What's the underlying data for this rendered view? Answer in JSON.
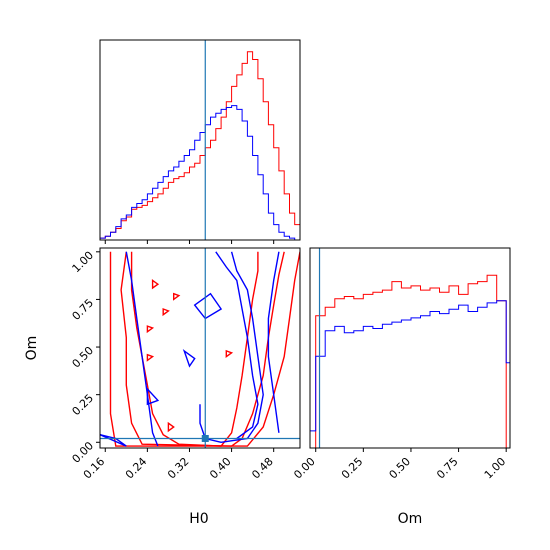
{
  "chart_data": {
    "type": "corner",
    "parameters": [
      "H0",
      "Om"
    ],
    "colors": {
      "series_a": "#ff0000",
      "series_b": "#0000ff",
      "truth": "#1f77b4"
    },
    "truth": {
      "H0": 0.35,
      "Om": 0.02
    },
    "axes": {
      "H0": {
        "range": [
          0.15,
          0.53
        ],
        "ticks": [
          0.16,
          0.24,
          0.32,
          0.4,
          0.48
        ],
        "tick_labels": [
          "0.16",
          "0.24",
          "0.32",
          "0.40",
          "0.48"
        ],
        "label": "H0"
      },
      "Om": {
        "range": [
          -0.03,
          1.02
        ],
        "ticks": [
          0.0,
          0.25,
          0.5,
          0.75,
          1.0
        ],
        "tick_labels": [
          "0.00",
          "0.25",
          "0.50",
          "0.75",
          "1.00"
        ],
        "label": "Om"
      }
    },
    "hist_H0": {
      "bin_edges": [
        0.15,
        0.16,
        0.17,
        0.18,
        0.19,
        0.2,
        0.21,
        0.22,
        0.23,
        0.24,
        0.25,
        0.26,
        0.27,
        0.28,
        0.29,
        0.3,
        0.31,
        0.32,
        0.33,
        0.34,
        0.35,
        0.36,
        0.37,
        0.38,
        0.39,
        0.4,
        0.41,
        0.42,
        0.43,
        0.44,
        0.45,
        0.46,
        0.47,
        0.48,
        0.49,
        0.5,
        0.51,
        0.52,
        0.53
      ],
      "series": [
        {
          "color": "red",
          "counts": [
            1,
            2,
            4,
            6,
            10,
            12,
            16,
            17,
            18,
            20,
            22,
            24,
            27,
            30,
            32,
            33,
            35,
            38,
            40,
            44,
            48,
            52,
            58,
            64,
            72,
            80,
            86,
            92,
            98,
            94,
            84,
            72,
            60,
            48,
            36,
            24,
            14,
            8
          ]
        },
        {
          "color": "blue",
          "counts": [
            1,
            2,
            4,
            7,
            11,
            13,
            17,
            19,
            21,
            24,
            27,
            30,
            33,
            36,
            38,
            41,
            44,
            47,
            52,
            56,
            60,
            64,
            66,
            68,
            69,
            70,
            68,
            62,
            54,
            44,
            34,
            24,
            14,
            8,
            4,
            2,
            1,
            0
          ]
        }
      ],
      "ymax": 100
    },
    "hist_Om": {
      "bin_edges": [
        -0.03,
        0.0,
        0.05,
        0.1,
        0.15,
        0.2,
        0.25,
        0.3,
        0.35,
        0.4,
        0.45,
        0.5,
        0.55,
        0.6,
        0.65,
        0.7,
        0.75,
        0.8,
        0.85,
        0.9,
        0.95,
        1.0,
        1.02
      ],
      "series": [
        {
          "color": "red",
          "counts": [
            0,
            62,
            66,
            70,
            71,
            70,
            72,
            73,
            74,
            78,
            75,
            76,
            74,
            75,
            73,
            76,
            72,
            77,
            78,
            81,
            69,
            0
          ]
        },
        {
          "color": "blue",
          "counts": [
            8,
            43,
            55,
            57,
            54,
            55,
            57,
            56,
            58,
            59,
            60,
            61,
            62,
            64,
            63,
            65,
            67,
            64,
            66,
            68,
            69,
            40
          ]
        }
      ],
      "ymax": 90
    },
    "contours_2d": {
      "x_param": "H0",
      "y_param": "Om",
      "series": [
        {
          "color": "red",
          "levels": [
            [
              [
                0.21,
                1.0
              ],
              [
                0.21,
                0.8
              ],
              [
                0.22,
                0.6
              ],
              [
                0.23,
                0.45
              ],
              [
                0.24,
                0.3
              ],
              [
                0.25,
                0.15
              ],
              [
                0.27,
                0.04
              ],
              [
                0.3,
                -0.01
              ],
              [
                0.38,
                -0.02
              ],
              [
                0.4,
                0.05
              ],
              [
                0.41,
                0.18
              ],
              [
                0.42,
                0.35
              ],
              [
                0.43,
                0.55
              ],
              [
                0.44,
                0.75
              ],
              [
                0.45,
                0.9
              ],
              [
                0.45,
                1.0
              ]
            ],
            [
              [
                0.2,
                1.0
              ],
              [
                0.19,
                0.8
              ],
              [
                0.2,
                0.55
              ],
              [
                0.2,
                0.3
              ],
              [
                0.21,
                0.1
              ],
              [
                0.23,
                -0.01
              ],
              [
                0.4,
                -0.02
              ],
              [
                0.42,
                0.02
              ],
              [
                0.44,
                0.15
              ],
              [
                0.46,
                0.35
              ],
              [
                0.47,
                0.55
              ],
              [
                0.48,
                0.72
              ],
              [
                0.49,
                0.88
              ],
              [
                0.5,
                1.0
              ]
            ],
            [
              [
                0.17,
                1.0
              ],
              [
                0.17,
                0.7
              ],
              [
                0.17,
                0.4
              ],
              [
                0.17,
                0.15
              ],
              [
                0.18,
                -0.02
              ],
              [
                0.43,
                -0.02
              ],
              [
                0.46,
                0.08
              ],
              [
                0.48,
                0.25
              ],
              [
                0.5,
                0.45
              ],
              [
                0.51,
                0.65
              ],
              [
                0.52,
                0.85
              ],
              [
                0.53,
                1.0
              ]
            ]
          ],
          "islands": [
            [
              [
                0.25,
                0.85
              ],
              [
                0.26,
                0.83
              ],
              [
                0.25,
                0.81
              ]
            ],
            [
              [
                0.29,
                0.78
              ],
              [
                0.3,
                0.77
              ],
              [
                0.29,
                0.75
              ]
            ],
            [
              [
                0.27,
                0.7
              ],
              [
                0.28,
                0.69
              ],
              [
                0.27,
                0.67
              ]
            ],
            [
              [
                0.24,
                0.61
              ],
              [
                0.25,
                0.6
              ],
              [
                0.24,
                0.58
              ]
            ],
            [
              [
                0.24,
                0.46
              ],
              [
                0.25,
                0.45
              ],
              [
                0.24,
                0.43
              ]
            ],
            [
              [
                0.39,
                0.48
              ],
              [
                0.4,
                0.47
              ],
              [
                0.39,
                0.45
              ]
            ],
            [
              [
                0.28,
                0.1
              ],
              [
                0.29,
                0.08
              ],
              [
                0.28,
                0.06
              ]
            ]
          ]
        },
        {
          "color": "blue",
          "levels": [
            [
              [
                0.4,
                1.0
              ],
              [
                0.41,
                0.9
              ],
              [
                0.43,
                0.8
              ],
              [
                0.44,
                0.65
              ],
              [
                0.45,
                0.45
              ],
              [
                0.46,
                0.25
              ],
              [
                0.45,
                0.1
              ],
              [
                0.43,
                0.02
              ],
              [
                0.38,
                0.0
              ],
              [
                0.35,
                0.02
              ],
              [
                0.34,
                0.1
              ],
              [
                0.34,
                0.2
              ]
            ],
            [
              [
                0.37,
                1.0
              ],
              [
                0.39,
                0.92
              ],
              [
                0.41,
                0.85
              ],
              [
                0.42,
                0.7
              ],
              [
                0.43,
                0.55
              ],
              [
                0.44,
                0.35
              ],
              [
                0.45,
                0.2
              ],
              [
                0.44,
                0.08
              ],
              [
                0.41,
                0.02
              ]
            ],
            [
              [
                0.2,
                1.0
              ],
              [
                0.21,
                0.85
              ],
              [
                0.22,
                0.65
              ],
              [
                0.23,
                0.45
              ],
              [
                0.24,
                0.25
              ],
              [
                0.25,
                0.05
              ],
              [
                0.26,
                -0.02
              ]
            ],
            [
              [
                0.49,
                1.0
              ],
              [
                0.48,
                0.85
              ],
              [
                0.47,
                0.65
              ],
              [
                0.47,
                0.45
              ],
              [
                0.48,
                0.25
              ],
              [
                0.49,
                0.05
              ]
            ]
          ],
          "islands": [
            [
              [
                0.33,
                0.72
              ],
              [
                0.36,
                0.78
              ],
              [
                0.38,
                0.7
              ],
              [
                0.35,
                0.65
              ],
              [
                0.33,
                0.72
              ]
            ],
            [
              [
                0.31,
                0.48
              ],
              [
                0.33,
                0.44
              ],
              [
                0.32,
                0.4
              ],
              [
                0.31,
                0.48
              ]
            ],
            [
              [
                0.24,
                0.28
              ],
              [
                0.26,
                0.22
              ],
              [
                0.24,
                0.2
              ],
              [
                0.24,
                0.28
              ]
            ],
            [
              [
                0.15,
                0.04
              ],
              [
                0.18,
                0.02
              ],
              [
                0.2,
                -0.02
              ]
            ]
          ]
        }
      ]
    }
  }
}
